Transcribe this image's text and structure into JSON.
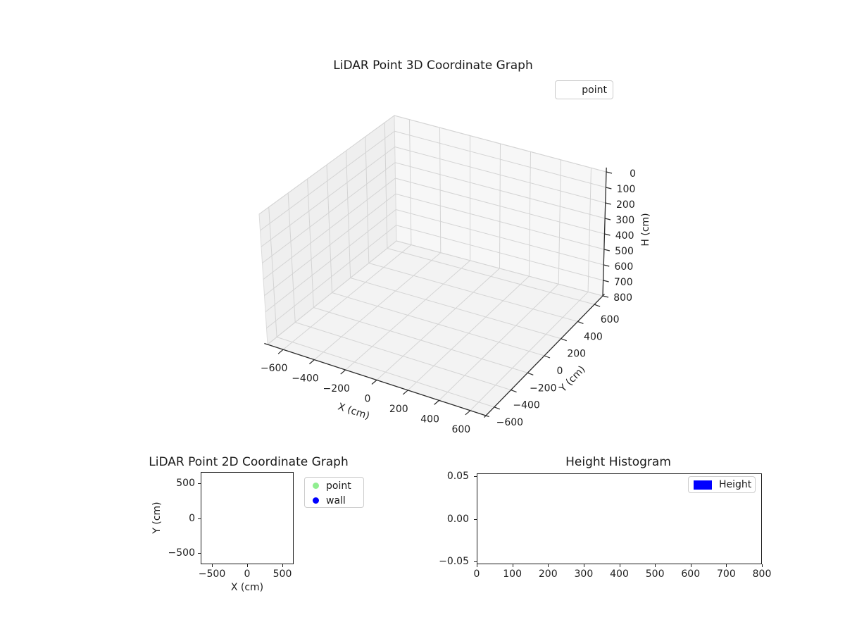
{
  "colors": {
    "background": "#ffffff",
    "axis_line": "#2b2b2b",
    "spine": "#1c1c1c",
    "grid": "#d4d4d4",
    "pane_edge": "#dcdcdc",
    "text": "#1d1d1d",
    "legend_border": "#cccccc",
    "pane_left": "#efefef",
    "pane_right": "#f7f7f7",
    "pane_floor": "#f3f3f3",
    "point_green": "#90EE90",
    "wall_blue": "#0000FF",
    "height_blue": "#0000FF"
  },
  "chart_data": [
    {
      "id": "lidar_3d",
      "type": "scatter3d",
      "title": "LiDAR Point 3D Coordinate Graph",
      "xlabel": "X (cm)",
      "ylabel": "Y (cm)",
      "zlabel": "H (cm)",
      "xlim": [
        -700,
        700
      ],
      "ylim": [
        -700,
        700
      ],
      "zlim": [
        0,
        800
      ],
      "z_axis_inverted": true,
      "grid": true,
      "x_ticks": [
        "−600",
        "−400",
        "−200",
        "0",
        "200",
        "400",
        "600"
      ],
      "y_ticks": [
        "−600",
        "−400",
        "−200",
        "0",
        "200",
        "400",
        "600"
      ],
      "z_ticks": [
        "0",
        "100",
        "200",
        "300",
        "400",
        "500",
        "600",
        "700",
        "800"
      ],
      "legend": [
        {
          "label": "point",
          "marker": "none"
        }
      ],
      "series": [
        {
          "name": "point",
          "points": []
        }
      ]
    },
    {
      "id": "lidar_2d",
      "type": "scatter",
      "title": "LiDAR Point 2D Coordinate Graph",
      "xlabel": "X (cm)",
      "ylabel": "Y (cm)",
      "xlim": [
        -660,
        660
      ],
      "ylim": [
        -660,
        660
      ],
      "grid": false,
      "x_ticks": [
        "−500",
        "0",
        "500"
      ],
      "y_ticks": [
        "500",
        "0",
        "−500"
      ],
      "legend": [
        {
          "label": "point",
          "color": "#90EE90",
          "marker": "circle"
        },
        {
          "label": "wall",
          "color": "#0000FF",
          "marker": "circle"
        }
      ],
      "series": [
        {
          "name": "point",
          "color": "#90EE90",
          "points": []
        },
        {
          "name": "wall",
          "color": "#0000FF",
          "points": []
        }
      ]
    },
    {
      "id": "height_histogram",
      "type": "bar",
      "title": "Height Histogram",
      "xlabel": "",
      "ylabel": "",
      "xlim": [
        0,
        800
      ],
      "ylim": [
        -0.053,
        0.053
      ],
      "grid": false,
      "x_ticks": [
        "0",
        "100",
        "200",
        "300",
        "400",
        "500",
        "600",
        "700",
        "800"
      ],
      "y_ticks": [
        "0.05",
        "0.00",
        "−0.05"
      ],
      "legend": [
        {
          "label": "Height",
          "color": "#0000FF",
          "marker": "rect"
        }
      ],
      "series": [
        {
          "name": "Height",
          "color": "#0000FF",
          "values": []
        }
      ]
    }
  ]
}
